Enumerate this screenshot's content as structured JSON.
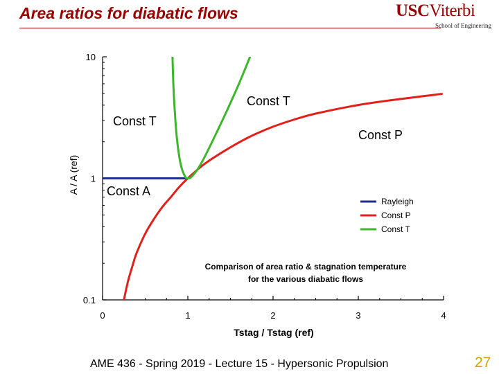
{
  "slide": {
    "title": "Area ratios for diabatic flows",
    "logo_main_usc": "USC",
    "logo_main_viterbi": "Viterbi",
    "logo_sub": "School of Engineering",
    "footer": "AME 436 - Spring 2019 - Lecture 15 - Hypersonic Propulsion",
    "page_number": "27"
  },
  "chart_data": {
    "type": "line",
    "xlabel": "Tstag / Tstag (ref)",
    "ylabel": "A / A (ref)",
    "xlim": [
      0,
      4
    ],
    "ylim": [
      0.1,
      10
    ],
    "yscale": "log",
    "xticks": [
      "0",
      "1",
      "2",
      "3",
      "4"
    ],
    "yticks": [
      "0.1",
      "1",
      "10"
    ],
    "grid": false,
    "legend": {
      "position": "right-middle",
      "entries": [
        "Rayleigh",
        "Const P",
        "Const T"
      ]
    },
    "caption": [
      "Comparison of area ratio & stagnation temperature",
      "for the various diabatic flows"
    ],
    "annotations": [
      {
        "text": "Const T",
        "near": "left branch"
      },
      {
        "text": "Const T",
        "near": "right branch"
      },
      {
        "text": "Const P",
        "near": "upper curve"
      },
      {
        "text": "Const A",
        "near": "Rayleigh line"
      }
    ],
    "series": [
      {
        "name": "Rayleigh",
        "color": "#1f2f8a",
        "x": [
          0,
          1
        ],
        "y": [
          1,
          1
        ]
      },
      {
        "name": "Const P",
        "color": "#e0201b",
        "x": [
          0.25,
          0.3,
          0.35,
          0.4,
          0.5,
          0.6,
          0.7,
          0.8,
          0.9,
          1.0,
          1.2,
          1.5,
          1.75,
          2.0,
          2.25,
          2.5,
          3.0,
          3.5,
          3.98
        ],
        "y": [
          0.1,
          0.144,
          0.19,
          0.244,
          0.35,
          0.46,
          0.58,
          0.7,
          0.85,
          1.0,
          1.32,
          1.8,
          2.24,
          2.66,
          3.05,
          3.41,
          4.01,
          4.5,
          4.95
        ]
      },
      {
        "name": "Const T",
        "color": "#3cb62b",
        "x": [
          0.82,
          0.83,
          0.85,
          0.87,
          0.9,
          0.93,
          0.97,
          1.0,
          1.05,
          1.15,
          1.3,
          1.45,
          1.6,
          1.73
        ],
        "y": [
          10,
          6,
          3.3,
          2.2,
          1.5,
          1.2,
          1.03,
          1.0,
          1.04,
          1.3,
          2.1,
          3.5,
          6.0,
          10
        ]
      }
    ]
  }
}
